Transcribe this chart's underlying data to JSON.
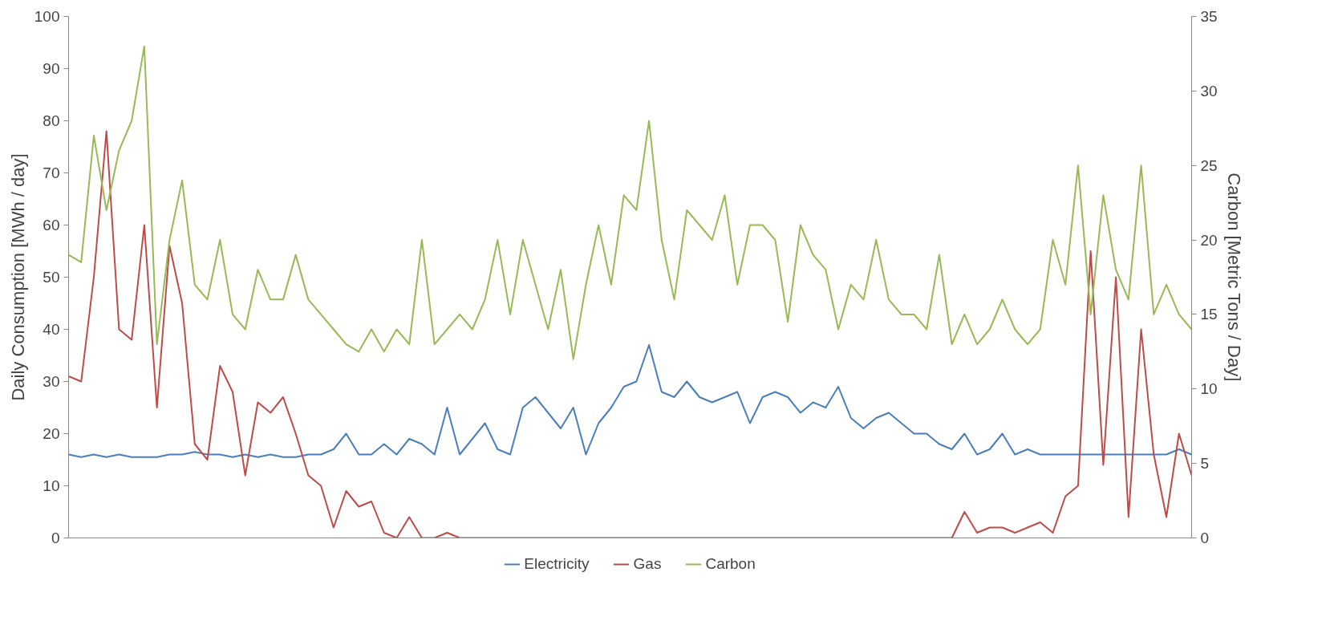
{
  "chart_data": {
    "type": "line",
    "categories": [
      null,
      null,
      null,
      null,
      null,
      null,
      null,
      null,
      null,
      null,
      null,
      null,
      null,
      null,
      null,
      null,
      null,
      null,
      null,
      null,
      null,
      null,
      null,
      null,
      null,
      null,
      null,
      null,
      null,
      null,
      null,
      null,
      null,
      null,
      null,
      null,
      null,
      null,
      null,
      null,
      null,
      null,
      null,
      null,
      null,
      null,
      null,
      null,
      null,
      null,
      null,
      null,
      null,
      null,
      null,
      null,
      null,
      null,
      null,
      null,
      null,
      null,
      null,
      null,
      null,
      null,
      null,
      null,
      null,
      null,
      null,
      null,
      null,
      null,
      null,
      null,
      null,
      null,
      null,
      null,
      null,
      null,
      null,
      null,
      null,
      null,
      null,
      null,
      null,
      null
    ],
    "series": [
      {
        "name": "Electricity",
        "color": "#4a7ebb",
        "values": [
          16,
          15.5,
          16,
          15.5,
          16,
          15.5,
          15.5,
          15.5,
          16,
          16,
          16.5,
          16,
          16,
          15.5,
          16,
          15.5,
          16,
          15.5,
          15.5,
          16,
          16,
          17,
          20,
          16,
          16,
          18,
          16,
          19,
          18,
          16,
          25,
          16,
          19,
          22,
          17,
          16,
          25,
          27,
          24,
          21,
          25,
          16,
          22,
          25,
          29,
          30,
          37,
          28,
          27,
          30,
          27,
          26,
          27,
          28,
          22,
          27,
          28,
          27,
          24,
          26,
          25,
          29,
          23,
          21,
          23,
          24,
          22,
          20,
          20,
          18,
          17,
          20,
          16,
          17,
          20,
          16,
          17,
          16,
          16,
          16,
          16,
          16,
          16,
          16,
          16,
          16,
          16,
          16,
          17,
          16
        ]
      },
      {
        "name": "Gas",
        "color": "#be4b48",
        "values": [
          31,
          30,
          50,
          78,
          40,
          38,
          60,
          25,
          56,
          45,
          18,
          15,
          33,
          28,
          12,
          26,
          24,
          27,
          20,
          12,
          10,
          2,
          9,
          6,
          7,
          1,
          0,
          4,
          0,
          0,
          1,
          0,
          0,
          0,
          0,
          0,
          0,
          0,
          0,
          0,
          0,
          0,
          0,
          0,
          0,
          0,
          0,
          0,
          0,
          0,
          0,
          0,
          0,
          0,
          0,
          0,
          0,
          0,
          0,
          0,
          0,
          0,
          0,
          0,
          0,
          0,
          0,
          0,
          0,
          0,
          0,
          5,
          1,
          2,
          2,
          1,
          2,
          3,
          1,
          8,
          10,
          55,
          14,
          50,
          4,
          40,
          16,
          4,
          20,
          12
        ]
      },
      {
        "name": "Carbon",
        "color": "#98b954",
        "axis": "y2",
        "values": [
          19,
          18.5,
          27,
          22,
          26,
          28,
          33,
          13,
          20,
          24,
          17,
          16,
          20,
          15,
          14,
          18,
          16,
          16,
          19,
          16,
          15,
          14,
          13,
          12.5,
          14,
          12.5,
          14,
          13,
          20,
          13,
          14,
          15,
          14,
          16,
          20,
          15,
          20,
          17,
          14,
          18,
          12,
          17,
          21,
          17,
          23,
          22,
          28,
          20,
          16,
          22,
          21,
          20,
          23,
          17,
          21,
          21,
          20,
          14.5,
          21,
          19,
          18,
          14,
          17,
          16,
          20,
          16,
          15,
          15,
          14,
          19,
          13,
          15,
          13,
          14,
          16,
          14,
          13,
          14,
          20,
          17,
          25,
          15,
          23,
          18,
          16,
          25,
          15,
          17,
          15,
          14
        ]
      }
    ],
    "ylabel": "Daily Consumption [MWh / day]",
    "y2label": "Carbon [Metric Tons / Day]",
    "ylim": [
      0,
      100
    ],
    "yticks": [
      0,
      10,
      20,
      30,
      40,
      50,
      60,
      70,
      80,
      90,
      100
    ],
    "y2lim": [
      0,
      35
    ],
    "y2ticks": [
      0,
      5,
      10,
      15,
      20,
      25,
      30,
      35
    ],
    "tick_labels": "y",
    "legend": "bottom",
    "grid": false,
    "marker": "none",
    "line_style": "solid"
  }
}
